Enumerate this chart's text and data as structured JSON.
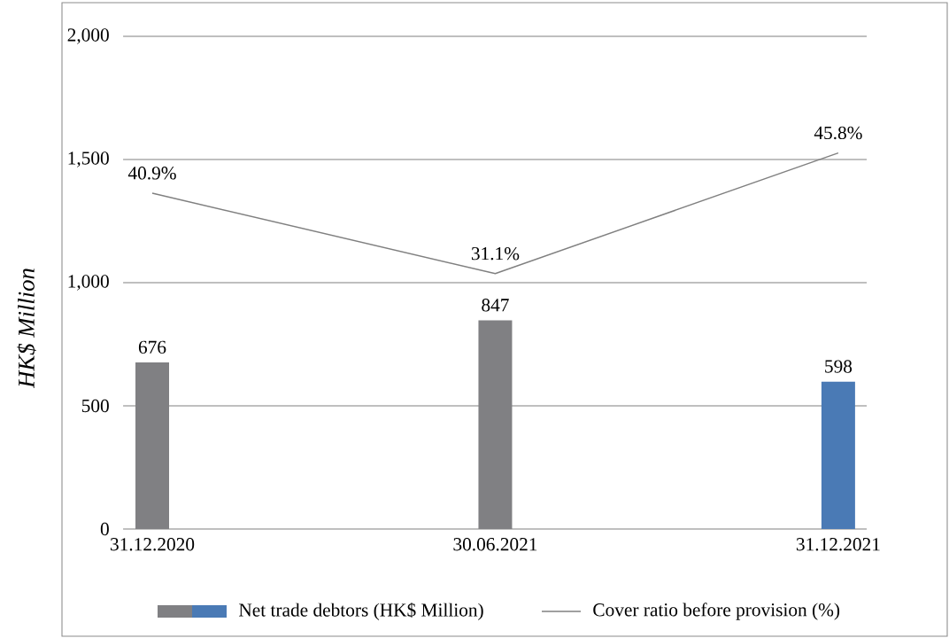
{
  "chart_data": {
    "type": "bar",
    "ylabel": "HK$ Million",
    "categories": [
      "31.12.2020",
      "30.06.2021",
      "31.12.2021"
    ],
    "series": [
      {
        "name": "Net trade debtors (HK$ Million)",
        "colors": [
          "#808083",
          "#808083",
          "#4a7ab5"
        ],
        "values": [
          676,
          847,
          598
        ],
        "value_labels": [
          "676",
          "847",
          "598"
        ]
      },
      {
        "name": "Cover ratio before provision (%)",
        "type": "line",
        "axis": "y2",
        "color": "#808080",
        "values": [
          40.9,
          31.1,
          45.8
        ],
        "value_labels": [
          "40.9%",
          "31.1%",
          "45.8%"
        ]
      }
    ],
    "ylim": [
      0,
      2000
    ],
    "yticks": [
      0,
      {
        "value": 500,
        "label": "500"
      },
      {
        "value": 1000,
        "label": "1,000"
      },
      {
        "value": 1500,
        "label": "1,500"
      },
      {
        "value": 2000,
        "label": "2,000"
      }
    ],
    "y2lim": [
      0,
      60
    ],
    "tick_labels": "xy",
    "grid": "y",
    "legend": "bottom"
  }
}
